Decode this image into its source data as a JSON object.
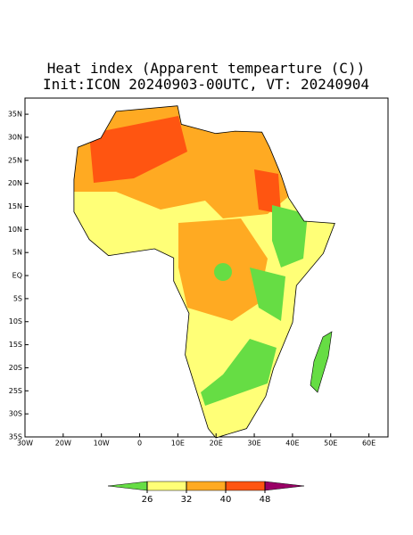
{
  "title": [
    "Heat index (Apparent tempearture (C))",
    "Init:ICON 20240903-00UTC, VT: 20240904"
  ],
  "map": {
    "xlim": [
      -30,
      65
    ],
    "ylim": [
      -35,
      38.5
    ],
    "lat_ticks": [
      {
        "value": 35,
        "label": "35N"
      },
      {
        "value": 30,
        "label": "30N"
      },
      {
        "value": 25,
        "label": "25N"
      },
      {
        "value": 20,
        "label": "20N"
      },
      {
        "value": 15,
        "label": "15N"
      },
      {
        "value": 10,
        "label": "10N"
      },
      {
        "value": 5,
        "label": "5N"
      },
      {
        "value": 0,
        "label": "EQ"
      },
      {
        "value": -5,
        "label": "5S"
      },
      {
        "value": -10,
        "label": "10S"
      },
      {
        "value": -15,
        "label": "15S"
      },
      {
        "value": -20,
        "label": "20S"
      },
      {
        "value": -25,
        "label": "25S"
      },
      {
        "value": -30,
        "label": "30S"
      },
      {
        "value": -35,
        "label": "35S"
      }
    ],
    "lon_ticks": [
      {
        "value": -30,
        "label": "30W"
      },
      {
        "value": -20,
        "label": "20W"
      },
      {
        "value": -10,
        "label": "10W"
      },
      {
        "value": 0,
        "label": "0"
      },
      {
        "value": 10,
        "label": "10E"
      },
      {
        "value": 20,
        "label": "20E"
      },
      {
        "value": 30,
        "label": "30E"
      },
      {
        "value": 40,
        "label": "40E"
      },
      {
        "value": 50,
        "label": "50E"
      },
      {
        "value": 60,
        "label": "60E"
      }
    ]
  },
  "colorbar": {
    "ticks": [
      26,
      32,
      40,
      48
    ],
    "colors": [
      "#66dd44",
      "#ffff77",
      "#ffaa22",
      "#ff5511",
      "#990066"
    ]
  }
}
